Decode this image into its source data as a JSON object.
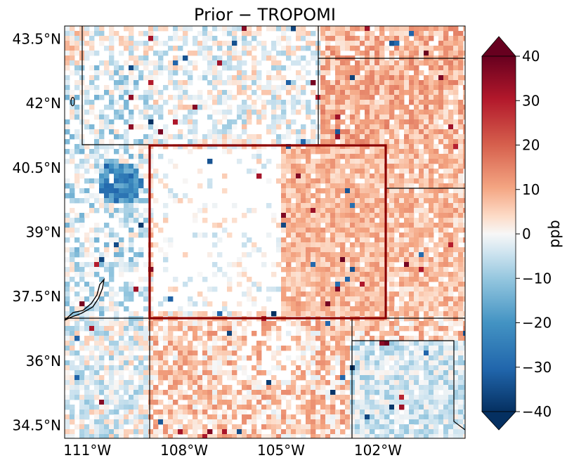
{
  "title": "Prior − TROPOMI",
  "map": {
    "lon_range": [
      -111.7,
      -99.3
    ],
    "lat_range": [
      34.2,
      43.8
    ],
    "lat_ticks": [
      {
        "value": 43.5,
        "label": "43.5°N"
      },
      {
        "value": 42.0,
        "label": "42°N"
      },
      {
        "value": 40.5,
        "label": "40.5°N"
      },
      {
        "value": 39.0,
        "label": "39°N"
      },
      {
        "value": 37.5,
        "label": "37.5°N"
      },
      {
        "value": 36.0,
        "label": "36°N"
      },
      {
        "value": 34.5,
        "label": "34.5°N"
      }
    ],
    "lon_ticks": [
      {
        "value": -111,
        "label": "111°W"
      },
      {
        "value": -108,
        "label": "108°W"
      },
      {
        "value": -105,
        "label": "105°W"
      },
      {
        "value": -102,
        "label": "102°W"
      }
    ],
    "highlight_region": {
      "lon": [
        -109.05,
        -102.05
      ],
      "lat": [
        37.0,
        41.0
      ],
      "color": "#8b0000"
    }
  },
  "colorbar": {
    "label": "ppb",
    "vmin": -40,
    "vmax": 40,
    "colormap": "RdBu_r",
    "extend": "both",
    "ticks": [
      {
        "value": 40,
        "label": "40"
      },
      {
        "value": 30,
        "label": "30"
      },
      {
        "value": 20,
        "label": "20"
      },
      {
        "value": 10,
        "label": "10"
      },
      {
        "value": 0,
        "label": "0"
      },
      {
        "value": -10,
        "label": "−10"
      },
      {
        "value": -20,
        "label": "−20"
      },
      {
        "value": -30,
        "label": "−30"
      },
      {
        "value": -40,
        "label": "−40"
      }
    ]
  },
  "colors": {
    "neg_strong": "#053061",
    "neg": "#2166ac",
    "neg_light": "#92c5de",
    "neutral": "#f7f7f7",
    "pos_light": "#f4a582",
    "pos": "#d6604d",
    "pos_strong": "#67001f"
  }
}
